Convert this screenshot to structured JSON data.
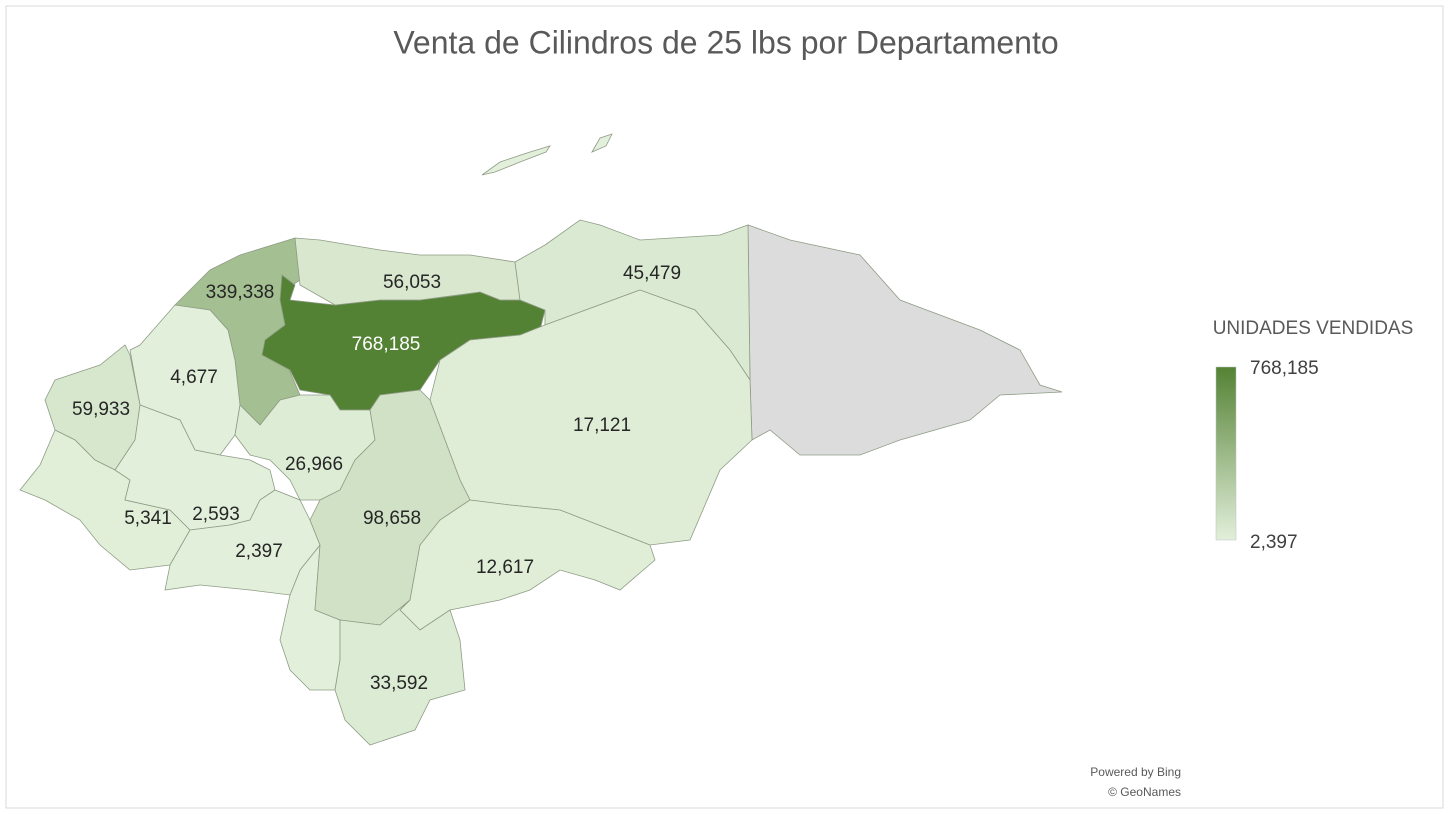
{
  "chart_data": {
    "type": "map",
    "title": "Venta de Cilindros de 25 lbs por Departamento",
    "values": [
      339338,
      768185,
      56053,
      45479,
      4677,
      59933,
      17121,
      26966,
      5341,
      2593,
      2397,
      98658,
      12617,
      33592
    ],
    "value_labels": [
      "339,338",
      "768,185",
      "56,053",
      "45,479",
      "4,677",
      "59,933",
      "17,121",
      "26,966",
      "5,341",
      "2,593",
      "2,397",
      "98,658",
      "12,617",
      "33,592"
    ],
    "legend": {
      "title": "UNIDADES VENDIDAS",
      "max": {
        "value": 768185,
        "label": "768,185"
      },
      "min": {
        "value": 2397,
        "label": "2,397"
      }
    },
    "color_min": "#e2efda",
    "color_max": "#548235",
    "credits": [
      "Powered by Bing",
      "© GeoNames"
    ]
  }
}
